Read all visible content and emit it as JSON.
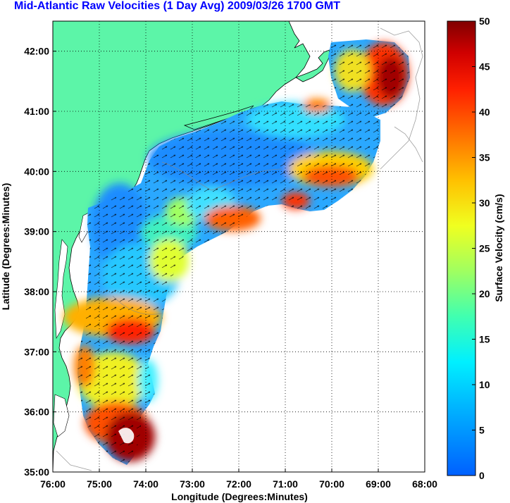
{
  "title": "Mid-Atlantic Raw Velocities (1 Day Avg) 2009/03/26 1700 GMT",
  "map": {
    "xlabel": "Longitude (Degrees:Minutes)",
    "ylabel": "Latitude (Degrees:Minutes)",
    "x_ticks": [
      "76:00",
      "75:00",
      "74:00",
      "73:00",
      "72:00",
      "71:00",
      "70:00",
      "69:00",
      "68:00"
    ],
    "y_ticks": [
      "42:00",
      "41:00",
      "40:00",
      "39:00",
      "38:00",
      "37:00",
      "36:00",
      "35:00"
    ],
    "land_color": "#5cf5a8",
    "grid": "dotted"
  },
  "colorbar": {
    "label": "Surface Velocity (cm/s)",
    "ticks": [
      "50",
      "45",
      "40",
      "35",
      "30",
      "25",
      "20",
      "15",
      "10",
      "5",
      "0"
    ],
    "range": [
      0,
      50
    ],
    "colors": [
      "#0060ff",
      "#00c8ff",
      "#00ffd0",
      "#50ff80",
      "#c8ff30",
      "#ffe000",
      "#ff9000",
      "#ff3000",
      "#c00000",
      "#800000"
    ]
  },
  "chart_data": {
    "type": "heatmap",
    "title": "Mid-Atlantic Raw Velocities (1 Day Avg) 2009/03/26 1700 GMT",
    "xlabel": "Longitude (Degrees:Minutes)",
    "ylabel": "Latitude (Degrees:Minutes)",
    "xlim": [
      -76,
      -68
    ],
    "ylim": [
      35,
      42.5
    ],
    "value_label": "Surface Velocity (cm/s)",
    "value_range": [
      0,
      50
    ]
  }
}
